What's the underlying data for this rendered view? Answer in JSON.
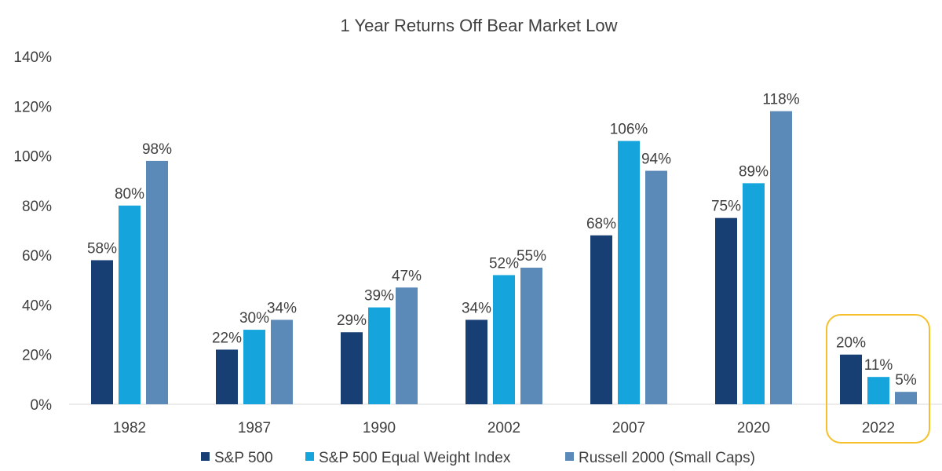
{
  "chart_data": {
    "type": "bar",
    "title": "1 Year Returns Off Bear Market Low",
    "xlabel": "",
    "ylabel": "",
    "categories": [
      "1982",
      "1987",
      "1990",
      "2002",
      "2007",
      "2020",
      "2022"
    ],
    "series": [
      {
        "name": "S&P 500",
        "color": "#173f73",
        "values": [
          58,
          22,
          29,
          34,
          68,
          75,
          20
        ],
        "labels": [
          "58%",
          "22%",
          "29%",
          "34%",
          "68%",
          "75%",
          "20%"
        ]
      },
      {
        "name": "S&P 500 Equal Weight Index",
        "color": "#16a4dd",
        "values": [
          80,
          30,
          39,
          52,
          106,
          89,
          11
        ],
        "labels": [
          "80%",
          "30%",
          "39%",
          "52%",
          "106%",
          "89%",
          "11%"
        ]
      },
      {
        "name": "Russell 2000 (Small Caps)",
        "color": "#5b8ab8",
        "values": [
          98,
          34,
          47,
          55,
          94,
          118,
          5
        ],
        "labels": [
          "98%",
          "34%",
          "47%",
          "55%",
          "94%",
          "118%",
          "5%"
        ]
      }
    ],
    "ylim": [
      0,
      140
    ],
    "yticks": [
      0,
      20,
      40,
      60,
      80,
      100,
      120,
      140
    ],
    "ytick_labels": [
      "0%",
      "20%",
      "40%",
      "60%",
      "80%",
      "100%",
      "120%",
      "140%"
    ],
    "grid": false,
    "legend_position": "bottom",
    "highlight": {
      "category": "2022",
      "color": "#f5c02a"
    }
  }
}
